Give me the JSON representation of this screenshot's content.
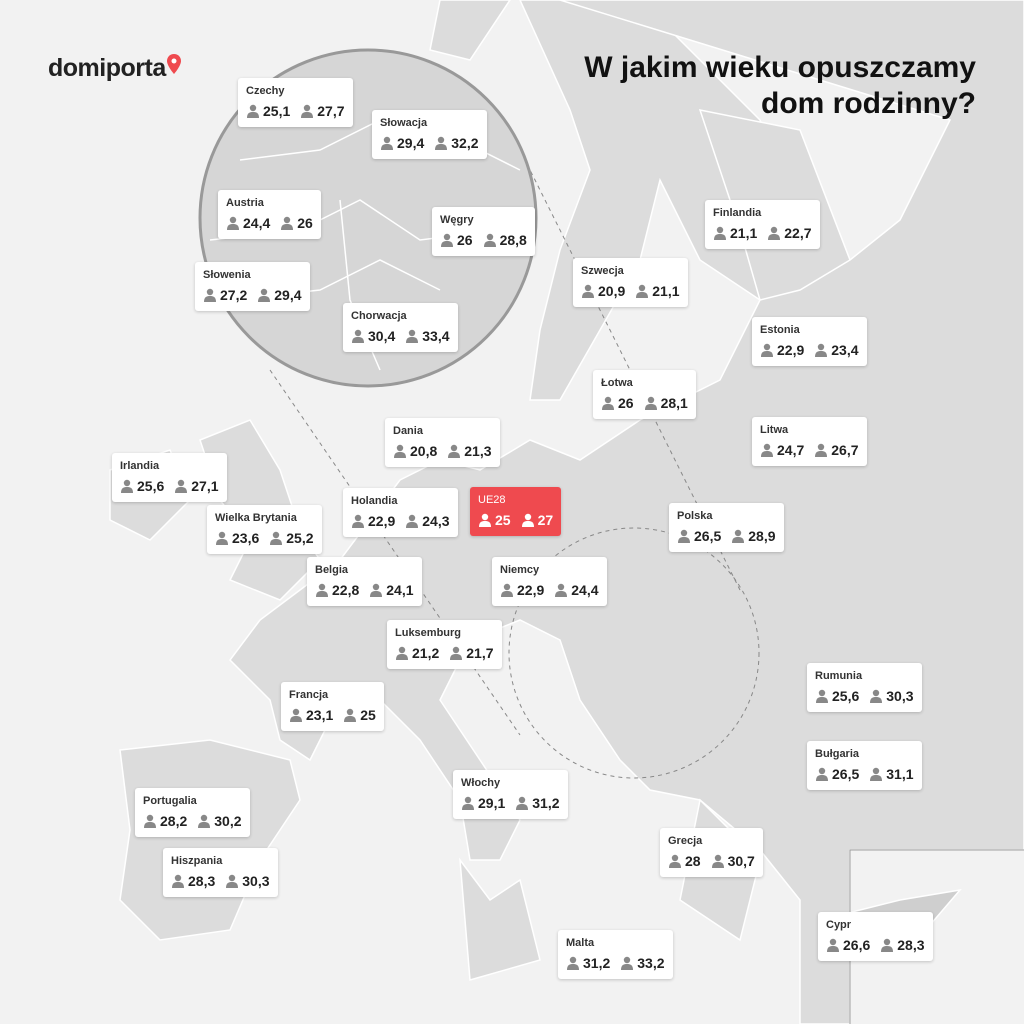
{
  "header": {
    "logo": "domiporta",
    "title_lines": [
      "W jakim wieku opuszczamy",
      "dom rodzinny?"
    ]
  },
  "labels": [
    {
      "name": "Czechy",
      "values": [
        "25,1",
        "27,7"
      ]
    },
    {
      "name": "Słowacja",
      "values": [
        "29,4",
        "32,2"
      ]
    },
    {
      "name": "Austria",
      "values": [
        "24,4",
        "26"
      ]
    },
    {
      "name": "Węgry",
      "values": [
        "26",
        "28,8"
      ]
    },
    {
      "name": "Słowenia",
      "values": [
        "27,2",
        "29,4"
      ]
    },
    {
      "name": "Chorwacja",
      "values": [
        "30,4",
        "33,4"
      ]
    },
    {
      "name": "Finlandia",
      "values": [
        "21,1",
        "22,7"
      ]
    },
    {
      "name": "Szwecja",
      "values": [
        "20,9",
        "21,1"
      ]
    },
    {
      "name": "Estonia",
      "values": [
        "22,9",
        "23,4"
      ]
    },
    {
      "name": "Łotwa",
      "values": [
        "26",
        "28,1"
      ]
    },
    {
      "name": "Dania",
      "values": [
        "20,8",
        "21,3"
      ]
    },
    {
      "name": "Litwa",
      "values": [
        "24,7",
        "26,7"
      ]
    },
    {
      "name": "Irlandia",
      "values": [
        "25,6",
        "27,1"
      ]
    },
    {
      "name": "Holandia",
      "values": [
        "22,9",
        "24,3"
      ]
    },
    {
      "name": "UE28",
      "values": [
        "25",
        "27"
      ]
    },
    {
      "name": "Wielka Brytania",
      "values": [
        "23,6",
        "25,2"
      ]
    },
    {
      "name": "Polska",
      "values": [
        "26,5",
        "28,9"
      ]
    },
    {
      "name": "Belgia",
      "values": [
        "22,8",
        "24,1"
      ]
    },
    {
      "name": "Niemcy",
      "values": [
        "22,9",
        "24,4"
      ]
    },
    {
      "name": "Luksemburg",
      "values": [
        "21,2",
        "21,7"
      ]
    },
    {
      "name": "Francja",
      "values": [
        "23,1",
        "25"
      ]
    },
    {
      "name": "Rumunia",
      "values": [
        "25,6",
        "30,3"
      ]
    },
    {
      "name": "Bułgaria",
      "values": [
        "26,5",
        "31,1"
      ]
    },
    {
      "name": "Włochy",
      "values": [
        "29,1",
        "31,2"
      ]
    },
    {
      "name": "Portugalia",
      "values": [
        "28,2",
        "30,2"
      ]
    },
    {
      "name": "Hiszpania",
      "values": [
        "28,3",
        "30,3"
      ]
    },
    {
      "name": "Grecja",
      "values": [
        "28",
        "30,7"
      ]
    },
    {
      "name": "Cypr",
      "values": [
        "26,6",
        "28,3"
      ]
    },
    {
      "name": "Malta",
      "values": [
        "31,2",
        "33,2"
      ]
    }
  ]
}
